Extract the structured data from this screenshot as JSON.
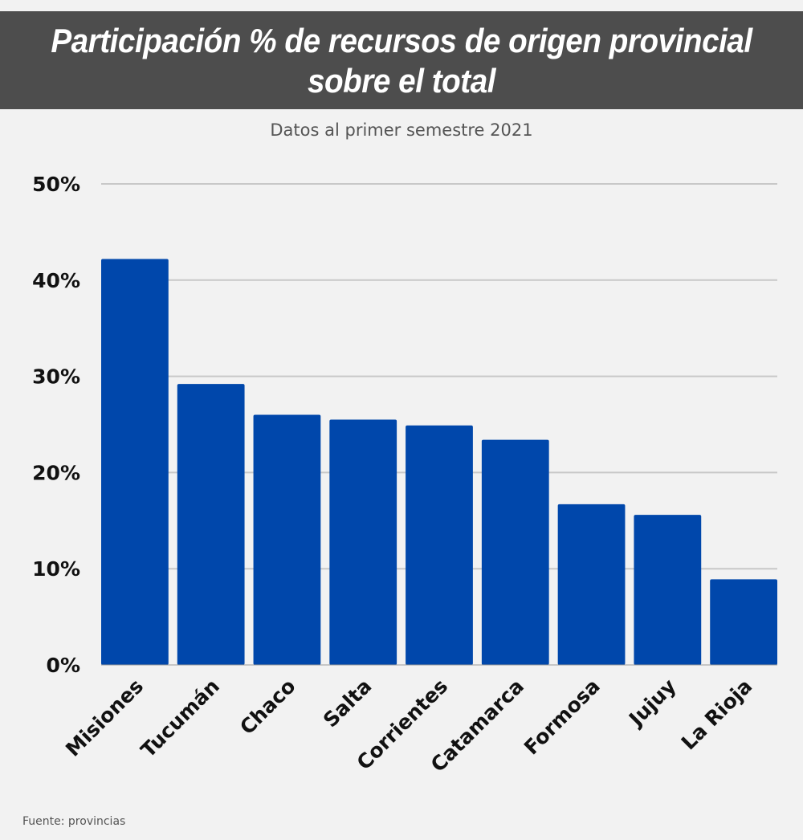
{
  "chart_data": {
    "type": "bar",
    "title": "Participación % de recursos de origen provincial sobre el total",
    "subtitle": "Datos al primer semestre 2021",
    "source": "Fuente: provincias",
    "categories": [
      "Misiones",
      "Tucumán",
      "Chaco",
      "Salta",
      "Corrientes",
      "Catamarca",
      "Formosa",
      "Jujuy",
      "La Rioja"
    ],
    "values": [
      42.2,
      29.2,
      26.0,
      25.5,
      24.9,
      23.4,
      16.7,
      15.6,
      8.9
    ],
    "ylim": [
      0,
      50
    ],
    "yticks": [
      "0%",
      "10%",
      "20%",
      "30%",
      "40%",
      "50%"
    ],
    "xlabel": "",
    "ylabel": "",
    "grid": true,
    "bar_color": "#0047ab"
  }
}
